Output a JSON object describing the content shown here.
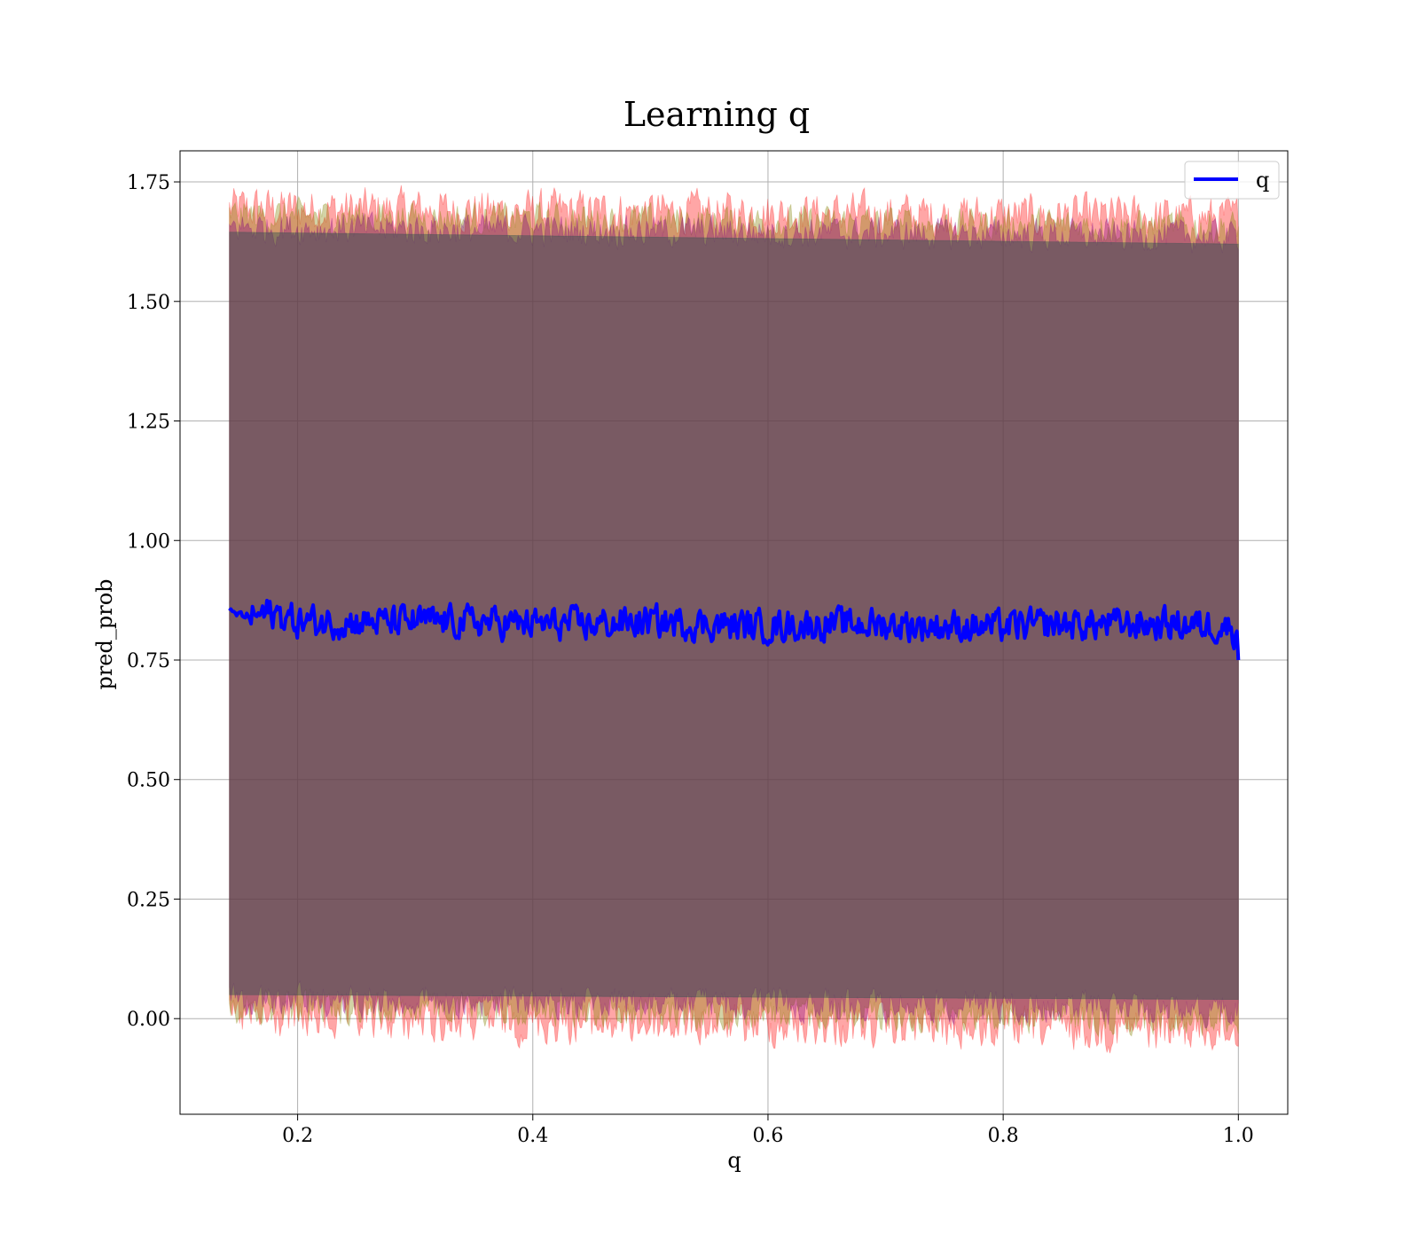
{
  "chart_data": {
    "type": "area",
    "title": "Learning q",
    "xlabel": "q",
    "ylabel": "pred_prob",
    "xlim": [
      0.1,
      1.042
    ],
    "ylim": [
      -0.2,
      1.815
    ],
    "xticks": [
      0.2,
      0.4,
      0.6,
      0.8,
      1.0
    ],
    "xtick_labels": [
      "0.2",
      "0.4",
      "0.6",
      "0.8",
      "1.0"
    ],
    "yticks": [
      0.0,
      0.25,
      0.5,
      0.75,
      1.0,
      1.25,
      1.5,
      1.75
    ],
    "ytick_labels": [
      "0.00",
      "0.25",
      "0.50",
      "0.75",
      "1.00",
      "1.25",
      "1.50",
      "1.75"
    ],
    "grid": true,
    "legend": {
      "position": "top-right",
      "entries": [
        "q"
      ]
    },
    "x_range": [
      0.142,
      1.0
    ],
    "series": [
      {
        "name": "q",
        "kind": "line",
        "color": "#0000ff",
        "x": [
          0.142,
          0.15,
          0.16,
          0.17,
          0.18,
          0.19,
          0.2,
          0.25,
          0.3,
          0.35,
          0.4,
          0.45,
          0.5,
          0.55,
          0.6,
          0.65,
          0.7,
          0.75,
          0.8,
          0.85,
          0.9,
          0.95,
          0.99,
          0.999,
          1.0
        ],
        "values": [
          0.848,
          0.845,
          0.84,
          0.845,
          0.848,
          0.84,
          0.83,
          0.83,
          0.83,
          0.83,
          0.825,
          0.825,
          0.83,
          0.825,
          0.82,
          0.825,
          0.825,
          0.82,
          0.82,
          0.825,
          0.825,
          0.825,
          0.82,
          0.81,
          0.75
        ],
        "noise_amplitude": 0.03
      },
      {
        "kind": "band",
        "color": "#ff0000",
        "opacity": 0.35,
        "x": [
          0.142,
          1.0
        ],
        "upper": [
          1.695,
          1.675
        ],
        "lower": [
          0.0,
          -0.025
        ],
        "noise_amplitude": 0.04
      },
      {
        "kind": "band",
        "color": "#808000",
        "opacity": 0.35,
        "x": [
          0.142,
          1.0
        ],
        "upper": [
          1.68,
          1.655
        ],
        "lower": [
          0.025,
          0.0
        ],
        "noise_amplitude": 0.03
      },
      {
        "kind": "band",
        "color": "#800080",
        "opacity": 0.35,
        "x": [
          0.142,
          1.0
        ],
        "upper": [
          1.655,
          1.635
        ],
        "lower": [
          0.04,
          0.02
        ],
        "noise_amplitude": 0.03
      },
      {
        "kind": "band",
        "color": "#2f4f4f",
        "opacity": 0.45,
        "x": [
          0.142,
          1.0
        ],
        "upper": [
          1.645,
          1.62
        ],
        "lower": [
          0.05,
          0.04
        ],
        "noise_amplitude": 0.0
      }
    ]
  }
}
